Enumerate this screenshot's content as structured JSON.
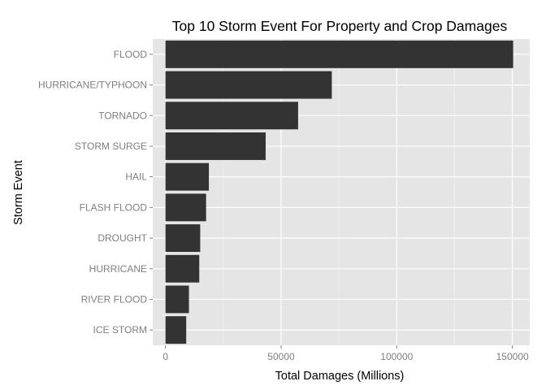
{
  "chart_data": {
    "type": "bar",
    "orientation": "horizontal",
    "title": "Top 10 Storm Event For Property and Crop Damages",
    "xlabel": "Total Damages (Millions)",
    "ylabel": "Storm Event",
    "categories": [
      "FLOOD",
      "HURRICANE/TYPHOON",
      "TORNADO",
      "STORM SURGE",
      "HAIL",
      "FLASH FLOOD",
      "DROUGHT",
      "HURRICANE",
      "RIVER FLOOD",
      "ICE STORM"
    ],
    "values": [
      150320,
      71914,
      57352,
      43324,
      18761,
      17562,
      15019,
      14610,
      10148,
      8967
    ],
    "xlim": [
      -5500,
      157500
    ],
    "x_ticks": [
      0,
      50000,
      100000,
      150000
    ],
    "x_tick_labels": [
      "0",
      "50000",
      "100000",
      "150000"
    ],
    "grid": true,
    "legend": "none",
    "colors": {
      "bar": "#333333",
      "panel": "#e5e5e5",
      "grid": "#ffffff"
    }
  }
}
